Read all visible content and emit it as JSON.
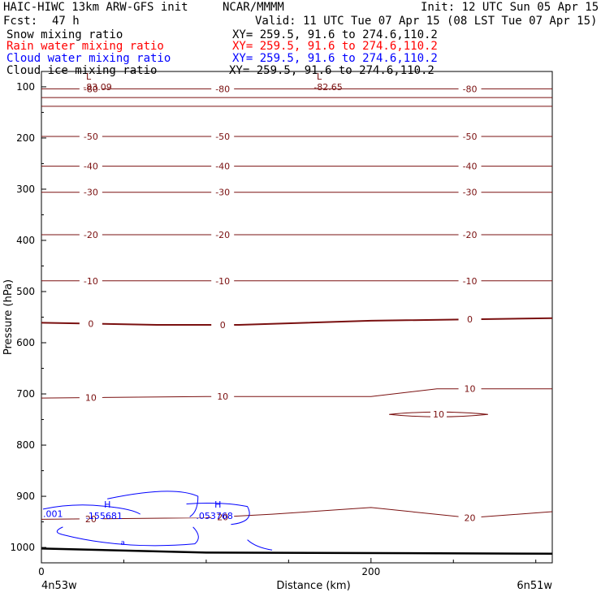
{
  "header": {
    "model": "HAIC-HIWC 13km ARW-GFS init",
    "org": "NCAR/MMMM",
    "init": "Init: 12 UTC Sun 05 Apr 15",
    "fcst_label": "Fcst:",
    "fcst_value": "47 h",
    "valid": "Valid: 11 UTC Tue 07 Apr 15 (08 LST Tue 07 Apr 15)"
  },
  "fields": [
    {
      "name": "Snow mixing ratio",
      "xy": "XY= 259.5, 91.6 to 274.6,110.2",
      "color": "#000000"
    },
    {
      "name": "Rain water mixing ratio",
      "xy": "XY= 259.5, 91.6 to 274.6,110.2",
      "color": "#ff0000"
    },
    {
      "name": "Cloud water mixing ratio",
      "xy": "XY= 259.5, 91.6 to 274.6,110.2",
      "color": "#0000ff"
    },
    {
      "name": "Cloud ice mixing ratio",
      "xy": "XY= 259.5, 91.6 to 274.6,110.2",
      "color": "#000000"
    }
  ],
  "chart_data": {
    "type": "line",
    "subtype": "vertical cross-section contour",
    "xlabel": "Distance (km)",
    "ylabel": "Pressure (hPa)",
    "xlim": [
      0,
      310
    ],
    "ylim": [
      1030,
      70
    ],
    "x_ticks": [
      0,
      200
    ],
    "y_ticks": [
      100,
      200,
      300,
      400,
      500,
      600,
      700,
      800,
      900,
      1000
    ],
    "left_endpoint": "4n53w",
    "right_endpoint": "6n51w",
    "colors": {
      "temperature": "#7a1010",
      "cloud_water": "#0000ff",
      "ground": "#000000"
    },
    "temperature_contours": [
      {
        "level": -80,
        "label": "-80",
        "points": [
          [
            0,
            104
          ],
          [
            310,
            104
          ]
        ]
      },
      {
        "level": -70,
        "label": "",
        "points": [
          [
            0,
            121
          ],
          [
            310,
            121
          ]
        ]
      },
      {
        "level": -60,
        "label": "",
        "points": [
          [
            0,
            138
          ],
          [
            310,
            138
          ]
        ]
      },
      {
        "level": -50,
        "label": "-50",
        "points": [
          [
            0,
            197
          ],
          [
            310,
            197
          ]
        ]
      },
      {
        "level": -40,
        "label": "-40",
        "points": [
          [
            0,
            255
          ],
          [
            310,
            255
          ]
        ]
      },
      {
        "level": -30,
        "label": "-30",
        "points": [
          [
            0,
            306
          ],
          [
            310,
            306
          ]
        ]
      },
      {
        "level": -20,
        "label": "-20",
        "points": [
          [
            0,
            389
          ],
          [
            310,
            389
          ]
        ]
      },
      {
        "level": -10,
        "label": "-10",
        "points": [
          [
            0,
            479
          ],
          [
            310,
            479
          ]
        ]
      },
      {
        "level": 0,
        "label": "0",
        "points": [
          [
            0,
            561
          ],
          [
            70,
            565
          ],
          [
            120,
            565
          ],
          [
            200,
            557
          ],
          [
            310,
            552
          ]
        ]
      },
      {
        "level": 10,
        "label": "10",
        "points": [
          [
            0,
            708
          ],
          [
            100,
            705
          ],
          [
            200,
            705
          ],
          [
            240,
            690
          ],
          [
            310,
            690
          ]
        ]
      },
      {
        "level": 20,
        "label": "20",
        "points": [
          [
            0,
            945
          ],
          [
            100,
            942
          ],
          [
            140,
            935
          ],
          [
            200,
            922
          ],
          [
            260,
            942
          ],
          [
            310,
            930
          ]
        ]
      }
    ],
    "isolated_contour": {
      "level": 10,
      "label": "10",
      "x": [
        211,
        271
      ],
      "p": 740
    },
    "lows": [
      {
        "x": 34,
        "p": 95,
        "value": "-83.09"
      },
      {
        "x": 174,
        "p": 95,
        "value": "-82.65"
      }
    ],
    "cloud_water_contours": [
      {
        "level": 0.001,
        "label": ".001"
      },
      {
        "level": 0.01,
        "label": "a"
      }
    ],
    "cloud_water_highs": [
      {
        "x": 40,
        "p": 935,
        "value": ".155681"
      },
      {
        "x": 107,
        "p": 935,
        "value": ".053768"
      }
    ],
    "ground_pressure": [
      [
        0,
        1002
      ],
      [
        100,
        1010
      ],
      [
        310,
        1012
      ]
    ]
  }
}
